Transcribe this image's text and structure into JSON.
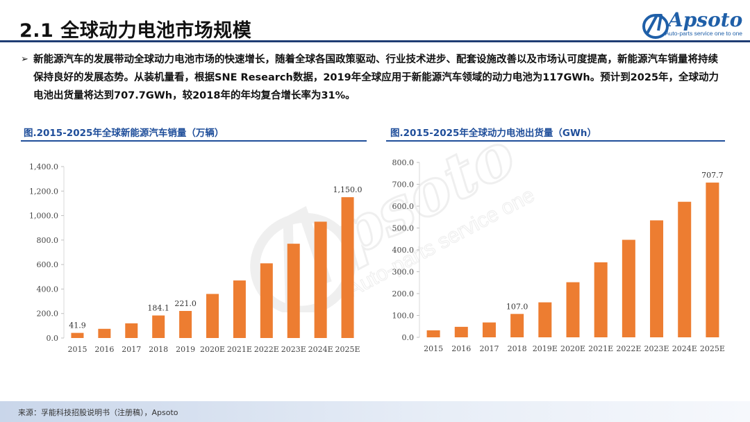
{
  "header": {
    "title": "2.1 全球动力电池市场规模",
    "logo_text": "Apsoto",
    "logo_tagline": "Auto-parts service one to one"
  },
  "body": {
    "bullet": "➢",
    "paragraph": "新能源汽车的发展带动全球动力电池市场的快速增长，随着全球各国政策驱动、行业技术进步、配套设施改善以及市场认可度提高，新能源汽车销量将持续保持良好的发展态势。从装机量看，根据SNE Research数据，2019年全球应用于新能源汽车领域的动力电池为117GWh。预计到2025年，全球动力电池出货量将达到707.7GWh，较2018年的年均复合增长率为31%。"
  },
  "footer": {
    "source": "来源：孚能科技招股说明书（注册稿），Apsoto"
  },
  "colors": {
    "bar": "#ed7d31",
    "heading_blue": "#1f4e9a",
    "title_rule": "#1f3d73"
  },
  "chart_data": [
    {
      "type": "bar",
      "title": "图.2015-2025年全球新能源汽车销量（万辆）",
      "categories": [
        "2015",
        "2016",
        "2017",
        "2018",
        "2019",
        "2020E",
        "2021E",
        "2022E",
        "2023E",
        "2024E",
        "2025E"
      ],
      "values": [
        41.9,
        75,
        120,
        184.1,
        221.0,
        360,
        470,
        610,
        770,
        950,
        1150.0
      ],
      "data_labels": {
        "0": "41.9",
        "3": "184.1",
        "4": "221.0",
        "10": "1,150.0"
      },
      "yticks": [
        "0.0",
        "200.0",
        "400.0",
        "600.0",
        "800.0",
        "1,000.0",
        "1,200.0",
        "1,400.0"
      ],
      "ylim": [
        0,
        1400
      ],
      "grid": false
    },
    {
      "type": "bar",
      "title": "图.2015-2025年全球动力电池出货量（GWh）",
      "categories": [
        "2015",
        "2016",
        "2017",
        "2018",
        "2019E",
        "2020E",
        "2021E",
        "2022E",
        "2023E",
        "2024E",
        "2025E"
      ],
      "values": [
        32,
        48,
        68,
        107.0,
        160,
        252,
        343,
        446,
        535,
        620,
        707.7
      ],
      "data_labels": {
        "3": "107.0",
        "10": "707.7"
      },
      "yticks": [
        "0.0",
        "100.0",
        "200.0",
        "300.0",
        "400.0",
        "500.0",
        "600.0",
        "700.0",
        "800.0"
      ],
      "ylim": [
        0,
        800
      ],
      "grid": false
    }
  ]
}
